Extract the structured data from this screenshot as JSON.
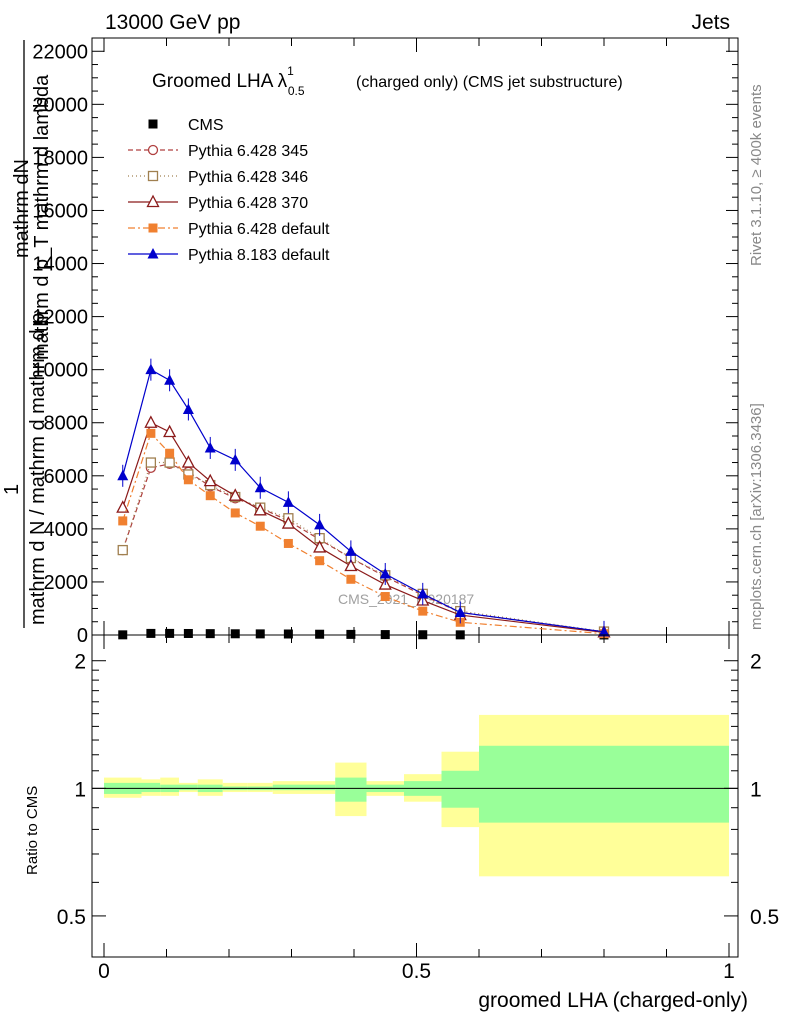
{
  "header": {
    "left": "13000 GeV pp",
    "right": "Jets"
  },
  "side_labels": {
    "rivet": "Rivet 3.1.10, ≥ 400k events",
    "mcplots": "mcplots.cern.ch [arXiv:1306.3436]"
  },
  "watermark": "CMS_2021_I1920187",
  "chart_data": [
    {
      "type": "line",
      "title": "Groomed LHA λ",
      "title_sup": "1",
      "title_sub": "0.5",
      "title_suffix": "(charged only) (CMS jet substructure)",
      "ylabel_line1": "mathrm dN",
      "ylabel_line2": "mathrm d p_T mathrm d lambda",
      "ylabel_line3": "1",
      "ylabel_line4": "mathrm d N / mathrm d mathrm d p",
      "xlabel": "groomed LHA (charged-only)",
      "xlim": [
        0,
        1
      ],
      "ylim": [
        0,
        22500
      ],
      "yticks": [
        0,
        2000,
        4000,
        6000,
        8000,
        10000,
        12000,
        14000,
        16000,
        18000,
        20000,
        22000
      ],
      "ytick_labels": [
        "0",
        "2000",
        "4000",
        "6000",
        "8000",
        "10000",
        "12000",
        "14000",
        "16000",
        "18000",
        "20000",
        "22000"
      ],
      "x": [
        0.03,
        0.075,
        0.105,
        0.135,
        0.17,
        0.21,
        0.25,
        0.295,
        0.345,
        0.395,
        0.45,
        0.51,
        0.57,
        0.8
      ],
      "series": [
        {
          "name": "CMS",
          "color": "#000000",
          "marker": "square",
          "dash": "none",
          "values": [
            6,
            60,
            60,
            57,
            51,
            46,
            42,
            38,
            29,
            23,
            16,
            10,
            6,
            2
          ]
        },
        {
          "name": "Pythia 6.428 345",
          "color": "#b04040",
          "marker": "circle-open",
          "dash": "5,3",
          "values": [
            3200,
            6300,
            6450,
            6150,
            5600,
            5150,
            4800,
            4300,
            3600,
            2900,
            2200,
            1500,
            850,
            120
          ]
        },
        {
          "name": "Pythia 6.428 346",
          "color": "#a08050",
          "marker": "square-open",
          "dash": "1,3",
          "values": [
            3200,
            6500,
            6500,
            6050,
            5650,
            5200,
            4800,
            4400,
            3650,
            2900,
            2250,
            1550,
            900,
            130
          ]
        },
        {
          "name": "Pythia 6.428 370",
          "color": "#8b1a1a",
          "marker": "triangle-open",
          "dash": "none",
          "values": [
            4800,
            8000,
            7650,
            6500,
            5800,
            5250,
            4700,
            4200,
            3300,
            2600,
            1900,
            1300,
            750,
            100
          ]
        },
        {
          "name": "Pythia 6.428 default",
          "color": "#f08030",
          "marker": "square",
          "dash": "7,3,2,3",
          "values": [
            4300,
            7600,
            6850,
            5850,
            5250,
            4600,
            4100,
            3450,
            2800,
            2100,
            1450,
            900,
            480,
            50
          ]
        },
        {
          "name": "Pythia 8.183 default",
          "color": "#0000cc",
          "marker": "triangle",
          "dash": "none",
          "values": [
            6000,
            10000,
            9600,
            8500,
            7050,
            6600,
            5550,
            5000,
            4150,
            3150,
            2300,
            1550,
            850,
            120
          ]
        }
      ]
    },
    {
      "type": "area",
      "ylabel": "Ratio to CMS",
      "xlabel": "groomed LHA (charged-only)",
      "xlim": [
        0,
        1
      ],
      "ylim": [
        0.4,
        2.3
      ],
      "scale": "log",
      "yticks": [
        0.5,
        1,
        2
      ],
      "ytick_labels": [
        "0.5",
        "1",
        "2"
      ],
      "xticks": [
        0,
        0.5,
        1
      ],
      "xtick_labels": [
        "0",
        "0.5",
        "1"
      ],
      "reference": 1,
      "bins": [
        {
          "x0": 0.0,
          "x1": 0.06,
          "inner": [
            0.97,
            1.03
          ],
          "outer": [
            0.95,
            1.06
          ]
        },
        {
          "x0": 0.06,
          "x1": 0.09,
          "inner": [
            0.98,
            1.03
          ],
          "outer": [
            0.96,
            1.05
          ]
        },
        {
          "x0": 0.09,
          "x1": 0.12,
          "inner": [
            0.98,
            1.02
          ],
          "outer": [
            0.96,
            1.06
          ]
        },
        {
          "x0": 0.12,
          "x1": 0.15,
          "inner": [
            0.99,
            1.02
          ],
          "outer": [
            0.98,
            1.03
          ]
        },
        {
          "x0": 0.15,
          "x1": 0.19,
          "inner": [
            0.98,
            1.02
          ],
          "outer": [
            0.96,
            1.05
          ]
        },
        {
          "x0": 0.19,
          "x1": 0.23,
          "inner": [
            0.99,
            1.01
          ],
          "outer": [
            0.98,
            1.03
          ]
        },
        {
          "x0": 0.23,
          "x1": 0.27,
          "inner": [
            0.99,
            1.01
          ],
          "outer": [
            0.98,
            1.03
          ]
        },
        {
          "x0": 0.27,
          "x1": 0.32,
          "inner": [
            0.99,
            1.02
          ],
          "outer": [
            0.97,
            1.04
          ]
        },
        {
          "x0": 0.32,
          "x1": 0.37,
          "inner": [
            0.99,
            1.02
          ],
          "outer": [
            0.97,
            1.04
          ]
        },
        {
          "x0": 0.37,
          "x1": 0.42,
          "inner": [
            0.93,
            1.06
          ],
          "outer": [
            0.86,
            1.15
          ]
        },
        {
          "x0": 0.42,
          "x1": 0.48,
          "inner": [
            0.98,
            1.02
          ],
          "outer": [
            0.96,
            1.04
          ]
        },
        {
          "x0": 0.48,
          "x1": 0.54,
          "inner": [
            0.96,
            1.04
          ],
          "outer": [
            0.93,
            1.08
          ]
        },
        {
          "x0": 0.54,
          "x1": 0.6,
          "inner": [
            0.9,
            1.1
          ],
          "outer": [
            0.81,
            1.22
          ]
        },
        {
          "x0": 0.6,
          "x1": 1.0,
          "inner": [
            0.83,
            1.26
          ],
          "outer": [
            0.62,
            1.49
          ]
        }
      ],
      "inner_color": "#99ff99",
      "outer_color": "#ffff99"
    }
  ]
}
